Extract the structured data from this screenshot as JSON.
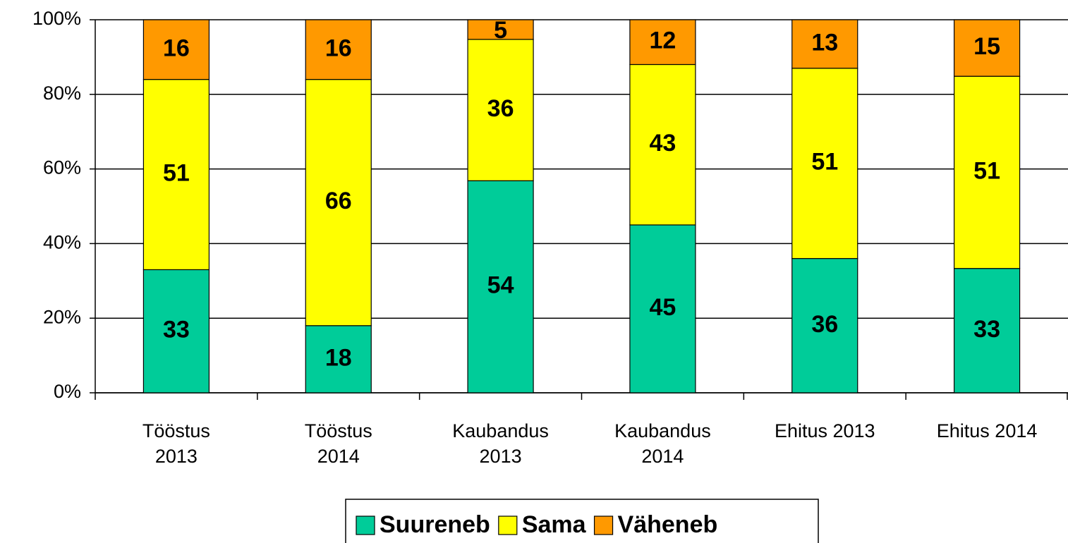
{
  "chart_data": {
    "type": "bar",
    "stacking": "percent",
    "categories": [
      "Tööstus 2013",
      "Tööstus 2014",
      "Kaubandus 2013",
      "Kaubandus 2014",
      "Ehitus 2013",
      "Ehitus 2014"
    ],
    "series": [
      {
        "name": "Suureneb",
        "color": "#00cc99",
        "values": [
          33,
          18,
          54,
          45,
          36,
          33
        ]
      },
      {
        "name": "Sama",
        "color": "#ffff00",
        "values": [
          51,
          66,
          36,
          43,
          51,
          51
        ]
      },
      {
        "name": "Väheneb",
        "color": "#ff9900",
        "values": [
          16,
          16,
          5,
          12,
          13,
          15
        ]
      }
    ],
    "ylim": [
      0,
      100
    ],
    "yticks": [
      {
        "value": 0,
        "label": "0%"
      },
      {
        "value": 20,
        "label": "20%"
      },
      {
        "value": 40,
        "label": "40%"
      },
      {
        "value": 60,
        "label": "60%"
      },
      {
        "value": 80,
        "label": "80%"
      },
      {
        "value": 100,
        "label": "100%"
      }
    ],
    "grid": true,
    "legend": "bottom"
  }
}
